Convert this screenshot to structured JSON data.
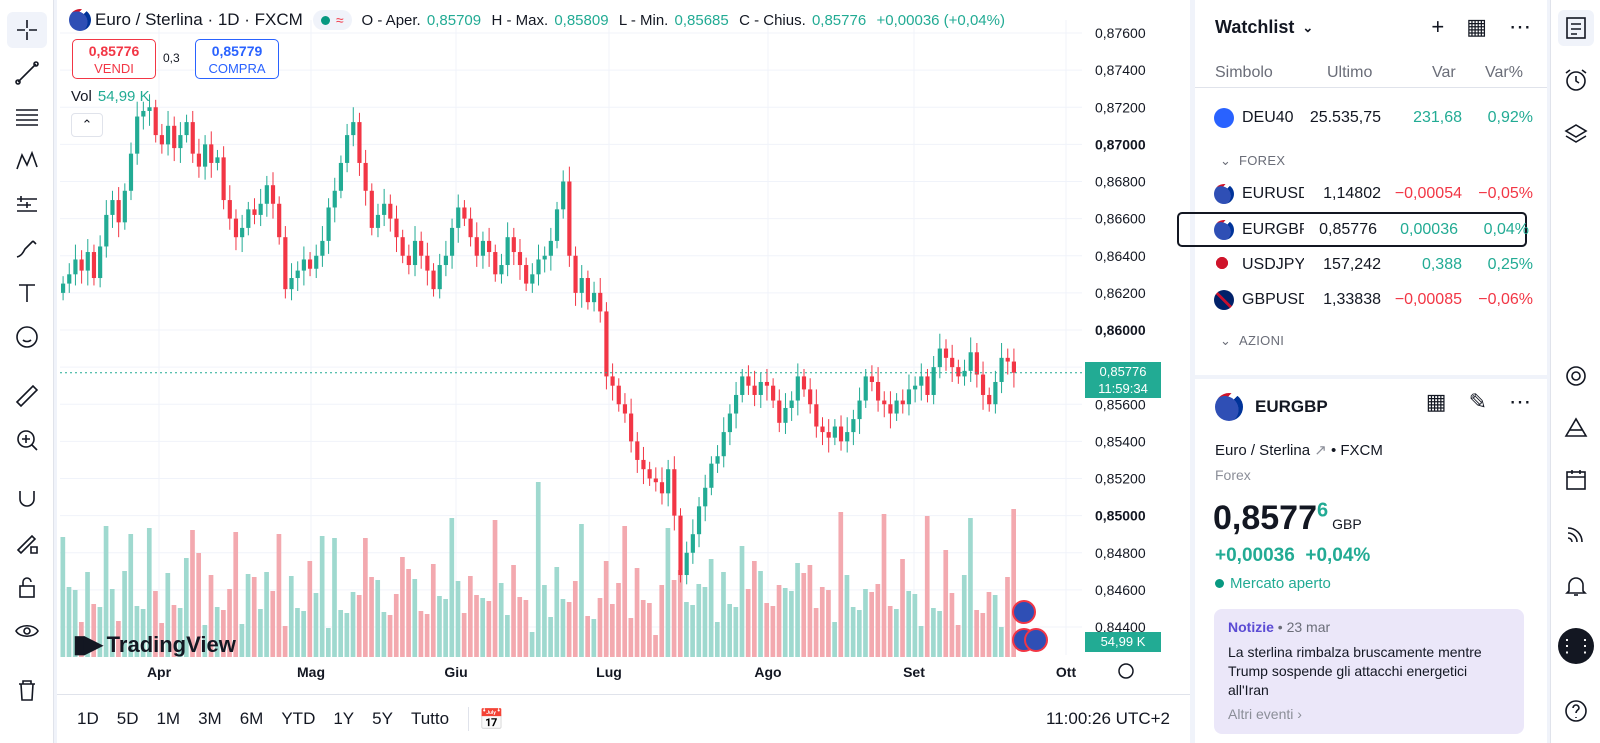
{
  "header": {
    "symbol_title": "Euro / Sterlina · 1D · FXCM",
    "open_label": "O - Aper.",
    "open_value": "0,85709",
    "high_label": "H - Max.",
    "high_value": "0,85809",
    "low_label": "L - Min.",
    "low_value": "0,85685",
    "close_label": "C - Chius.",
    "close_value": "0,85776",
    "change": "+0,00036 (+0,04%)"
  },
  "trade": {
    "sell_price": "0,85776",
    "sell_label": "VENDI",
    "buy_price": "0,85779",
    "buy_label": "COMPRA",
    "spread": "0,3"
  },
  "volume": {
    "label": "Vol",
    "value": "54,99 K"
  },
  "price_axis": {
    "ticks": [
      "0,87600",
      "0,87400",
      "0,87200",
      "0,87000",
      "0,86800",
      "0,86600",
      "0,86400",
      "0,86200",
      "0,86000",
      "0,85800",
      "0,85600",
      "0,85400",
      "0,85200",
      "0,85000",
      "0,84800",
      "0,84600",
      "0,84400"
    ],
    "current_price": "0,85776",
    "countdown": "11:59:34",
    "volume_tag": "54,99 K"
  },
  "time_axis": {
    "labels": [
      "Apr",
      "Mag",
      "Giu",
      "Lug",
      "Ago",
      "Set",
      "Ott"
    ]
  },
  "logo": "TradingView",
  "bottom_bar": {
    "ranges": [
      "1D",
      "5D",
      "1M",
      "3M",
      "6M",
      "YTD",
      "1Y",
      "5Y",
      "Tutto"
    ],
    "clock": "11:00:26 UTC+2"
  },
  "watchlist": {
    "title": "Watchlist",
    "columns": [
      "Simbolo",
      "Ultimo",
      "Var",
      "Var%"
    ],
    "rows": [
      {
        "symbol": "DEU40",
        "last": "25.535,75",
        "change": "231,68",
        "pct": "0,92%",
        "dir": "pos"
      },
      {
        "symbol": "EURUSD",
        "last": "1,14802",
        "change": "−0,00054",
        "pct": "−0,05%",
        "dir": "neg"
      },
      {
        "symbol": "EURGBP",
        "last": "0,85776",
        "change": "0,00036",
        "pct": "0,04%",
        "dir": "pos"
      },
      {
        "symbol": "USDJPY",
        "last": "157,242",
        "change": "0,388",
        "pct": "0,25%",
        "dir": "pos"
      },
      {
        "symbol": "GBPUSD",
        "last": "1,33838",
        "change": "−0,00085",
        "pct": "−0,06%",
        "dir": "neg"
      }
    ],
    "sections": [
      "FOREX",
      "AZIONI"
    ]
  },
  "details": {
    "symbol": "EURGBP",
    "name": "Euro / Sterlina",
    "exchange": "FXCM",
    "type": "Forex",
    "price": "0,8577",
    "price_last_digit": "6",
    "currency": "GBP",
    "change": "+0,00036",
    "change_pct": "+0,04%",
    "status": "Mercato aperto"
  },
  "news": {
    "label": "Notizie",
    "date": "23 mar",
    "headline": "La sterlina rimbalza bruscamente mentre Trump sospende gli attacchi energetici all'Iran",
    "more": "Altri eventi"
  },
  "colors": {
    "up": "#22ab94",
    "down": "#f23645",
    "accent": "#2962ff"
  },
  "chart_data": {
    "type": "candlestick",
    "symbol": "EURGBP",
    "ylim": [
      0.844,
      0.8765
    ],
    "y_ticks": [
      0.876,
      0.874,
      0.872,
      0.87,
      0.868,
      0.866,
      0.864,
      0.862,
      0.86,
      0.858,
      0.856,
      0.854,
      0.852,
      0.85,
      0.848,
      0.846,
      0.844
    ],
    "x_labels": [
      "Apr",
      "Mag",
      "Giu",
      "Lug",
      "Ago",
      "Set",
      "Ott"
    ],
    "closes": [
      0.8625,
      0.863,
      0.8638,
      0.8632,
      0.8642,
      0.8628,
      0.8645,
      0.8662,
      0.867,
      0.8658,
      0.8675,
      0.8695,
      0.8715,
      0.8718,
      0.872,
      0.8705,
      0.87,
      0.871,
      0.8698,
      0.8705,
      0.8712,
      0.8695,
      0.8688,
      0.87,
      0.869,
      0.8693,
      0.867,
      0.866,
      0.865,
      0.8655,
      0.8665,
      0.8662,
      0.8668,
      0.8678,
      0.8668,
      0.865,
      0.8622,
      0.8628,
      0.8632,
      0.8638,
      0.8633,
      0.864,
      0.8648,
      0.8666,
      0.8675,
      0.869,
      0.8705,
      0.8712,
      0.869,
      0.8675,
      0.8655,
      0.8662,
      0.8668,
      0.866,
      0.865,
      0.864,
      0.8635,
      0.8648,
      0.864,
      0.8632,
      0.8622,
      0.8635,
      0.864,
      0.8655,
      0.8666,
      0.866,
      0.865,
      0.864,
      0.8648,
      0.8642,
      0.863,
      0.8635,
      0.865,
      0.8642,
      0.8635,
      0.8625,
      0.863,
      0.8638,
      0.864,
      0.8648,
      0.8665,
      0.868,
      0.864,
      0.862,
      0.8628,
      0.8615,
      0.862,
      0.861,
      0.8575,
      0.857,
      0.856,
      0.8555,
      0.854,
      0.853,
      0.8525,
      0.852,
      0.8518,
      0.8512,
      0.8525,
      0.85,
      0.8468,
      0.848,
      0.849,
      0.8505,
      0.8515,
      0.8528,
      0.8532,
      0.8545,
      0.8555,
      0.8565,
      0.8575,
      0.857,
      0.8565,
      0.8572,
      0.857,
      0.8562,
      0.855,
      0.8558,
      0.8562,
      0.8575,
      0.8568,
      0.856,
      0.8548,
      0.8545,
      0.8542,
      0.8548,
      0.854,
      0.8545,
      0.8552,
      0.8562,
      0.8575,
      0.8572,
      0.8562,
      0.856,
      0.8555,
      0.8562,
      0.856,
      0.8568,
      0.857,
      0.8575,
      0.8565,
      0.858,
      0.859,
      0.8585,
      0.858,
      0.8575,
      0.8578,
      0.8588,
      0.8576,
      0.8565,
      0.856,
      0.8572,
      0.8585,
      0.8583,
      0.8577
    ]
  }
}
